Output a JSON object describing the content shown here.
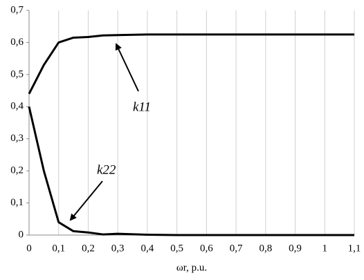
{
  "chart_data": {
    "type": "line",
    "x_label": "ωr, p.u.",
    "x": [
      0,
      0.05,
      0.1,
      0.15,
      0.2,
      0.25,
      0.3,
      0.4,
      0.5,
      0.6,
      0.7,
      0.8,
      0.9,
      1,
      1.1
    ],
    "series": [
      {
        "name": "k11",
        "color": "#000000",
        "values": [
          0.44,
          0.53,
          0.6,
          0.615,
          0.617,
          0.622,
          0.623,
          0.625,
          0.625,
          0.625,
          0.625,
          0.625,
          0.625,
          0.625,
          0.625
        ]
      },
      {
        "name": "k22",
        "color": "#000000",
        "values": [
          0.4,
          0.2,
          0.04,
          0.012,
          0.008,
          0.002,
          0.004,
          0.001,
          0,
          0,
          0,
          0,
          0,
          0,
          0
        ]
      }
    ],
    "xlim": [
      0,
      1.1
    ],
    "xticks": [
      0,
      {
        "value": 0.1,
        "label": "0,1"
      },
      {
        "value": 0.2,
        "label": "0,2"
      },
      {
        "value": 0.3,
        "label": "0,3"
      },
      {
        "value": 0.4,
        "label": "0,4"
      },
      {
        "value": 0.5,
        "label": "0,5"
      },
      {
        "value": 0.6,
        "label": "0,6"
      },
      {
        "value": 0.7,
        "label": "0,7"
      },
      {
        "value": 0.8,
        "label": "0,8"
      },
      {
        "value": 0.9,
        "label": "0,9"
      },
      1,
      {
        "value": 1.1,
        "label": "1,1"
      }
    ],
    "ylim": [
      0,
      0.7
    ],
    "yticks": [
      0,
      {
        "value": 0.1,
        "label": "0,1"
      },
      {
        "value": 0.2,
        "label": "0,2"
      },
      {
        "value": 0.3,
        "label": "0,3"
      },
      {
        "value": 0.4,
        "label": "0,4"
      },
      {
        "value": 0.5,
        "label": "0,5"
      },
      {
        "value": 0.6,
        "label": "0,6"
      },
      {
        "value": 0.7,
        "label": "0,7"
      }
    ],
    "grid": "x"
  }
}
